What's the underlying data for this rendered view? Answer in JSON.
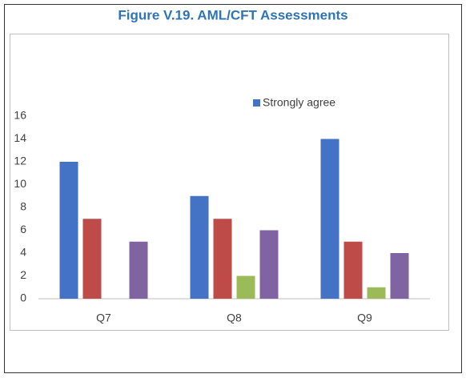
{
  "chart_data": {
    "type": "bar",
    "title": "Figure V.19. AML/CFT Assessments",
    "categories": [
      "Q7",
      "Q8",
      "Q9"
    ],
    "series": [
      {
        "name": "Strongly agree",
        "color": "#4472c4",
        "values": [
          12,
          9,
          14
        ]
      },
      {
        "color": "#be4b48",
        "values": [
          7,
          7,
          5
        ]
      },
      {
        "color": "#9bbb59",
        "values": [
          0,
          2,
          1
        ]
      },
      {
        "color": "#8064a2",
        "values": [
          5,
          6,
          4
        ]
      }
    ],
    "ylim": [
      0,
      16
    ],
    "yticks": [
      0,
      2,
      4,
      6,
      8,
      10,
      12,
      14,
      16
    ],
    "grid": false,
    "legend": "top"
  }
}
